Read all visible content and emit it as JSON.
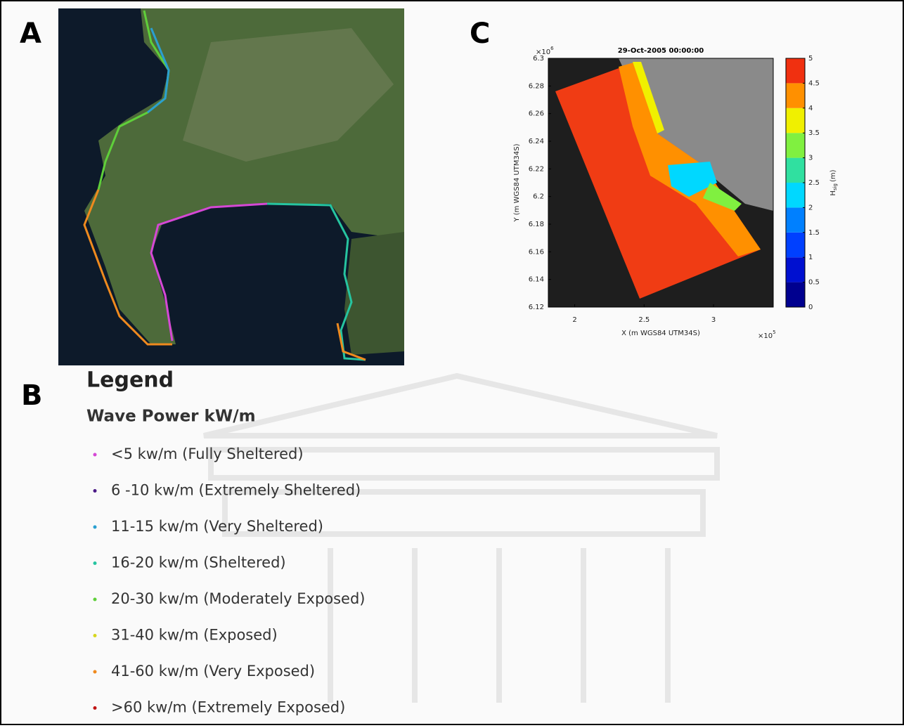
{
  "panel_labels": {
    "a": "A",
    "b": "B",
    "c": "C"
  },
  "legend": {
    "title": "Legend",
    "subtitle": "Wave Power kW/m",
    "items": [
      {
        "label": "<5 kw/m (Fully Sheltered)",
        "color": "#d548d5"
      },
      {
        "label": "6 -10 kw/m (Extremely Sheltered)",
        "color": "#4b1a86"
      },
      {
        "label": "11-15 kw/m (Very Sheltered)",
        "color": "#2a9fd0"
      },
      {
        "label": "16-20 kw/m (Sheltered)",
        "color": "#26c4a0"
      },
      {
        "label": "20-30 kw/m (Moderately Exposed)",
        "color": "#5fcf3a"
      },
      {
        "label": "31-40 kw/m (Exposed)",
        "color": "#d6d61e"
      },
      {
        "label": "41-60 kw/m (Very Exposed)",
        "color": "#ef8a1e"
      },
      {
        "label": ">60 kw/m (Extremely Exposed)",
        "color": "#c01414"
      }
    ]
  },
  "chart_data": {
    "type": "contour",
    "title": "29-Oct-2005 00:00:00",
    "x_label": "X (m WGS84 UTM34S)",
    "y_label": "Y (m WGS84 UTM34S)",
    "x_scale": {
      "base": "×10",
      "exponent": "5"
    },
    "y_scale": {
      "base": "×10",
      "exponent": "6"
    },
    "xlim": [
      1.81,
      3.43
    ],
    "xticks": [
      2,
      2.5,
      3
    ],
    "ylim": [
      6.12,
      6.3
    ],
    "yticks": [
      6.12,
      6.14,
      6.16,
      6.18,
      6.2,
      6.22,
      6.24,
      6.26,
      6.28,
      6.3
    ],
    "colorbar": {
      "label": {
        "symbol": "H",
        "subscript": "sig",
        "unit": "(m)"
      },
      "lim": [
        0,
        5
      ],
      "ticks": [
        0,
        0.5,
        1,
        1.5,
        2,
        2.5,
        3,
        3.5,
        4,
        4.5,
        5
      ],
      "colors": [
        "#00008f",
        "#0010d0",
        "#0040ff",
        "#0080ff",
        "#00d8ff",
        "#30e0a0",
        "#80f040",
        "#f0f000",
        "#ff9000",
        "#f03010"
      ]
    }
  }
}
